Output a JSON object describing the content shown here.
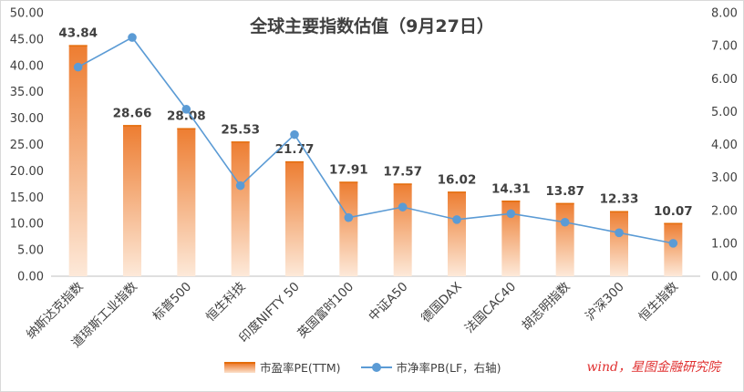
{
  "chart_data": {
    "type": "bar",
    "title": "全球主要指数估值（9月27日）",
    "categories": [
      "纳斯达克指数",
      "道琼斯工业指数",
      "标普500",
      "恒生科技",
      "印度NIFTY 50",
      "英国富时100",
      "中证A50",
      "德国DAX",
      "法国CAC40",
      "胡志明指数",
      "沪深300",
      "恒生指数"
    ],
    "series": [
      {
        "name": "市盈率PE(TTM)",
        "type": "bar",
        "axis": "left",
        "values": [
          43.84,
          28.66,
          28.08,
          25.53,
          21.77,
          17.91,
          17.57,
          16.02,
          14.31,
          13.87,
          12.33,
          10.07
        ]
      },
      {
        "name": "市净率PB(LF，右轴)",
        "type": "line",
        "axis": "right",
        "values": [
          6.35,
          7.25,
          5.07,
          2.75,
          4.3,
          1.78,
          2.1,
          1.72,
          1.9,
          1.64,
          1.32,
          1.0
        ]
      }
    ],
    "left_axis": {
      "min": 0,
      "max": 50,
      "step": 5,
      "ticks": [
        "0.00",
        "5.00",
        "10.00",
        "15.00",
        "20.00",
        "25.00",
        "30.00",
        "35.00",
        "40.00",
        "45.00",
        "50.00"
      ]
    },
    "right_axis": {
      "min": 0,
      "max": 8,
      "step": 1,
      "ticks": [
        "0.00",
        "1.00",
        "2.00",
        "3.00",
        "4.00",
        "5.00",
        "6.00",
        "7.00",
        "8.00"
      ]
    },
    "data_labels": [
      "43.84",
      "28.66",
      "28.08",
      "25.53",
      "21.77",
      "17.91",
      "17.57",
      "16.02",
      "14.31",
      "13.87",
      "12.33",
      "10.07"
    ],
    "legend_position": "bottom",
    "grid": false,
    "colors": {
      "bar_top": "#ed7d31",
      "bar_bottom": "#fde9d9",
      "line": "#5b9bd5",
      "text": "#404040",
      "axis": "#bfbfbf",
      "source": "#e03030"
    }
  },
  "source_text": "wind，星图金融研究院"
}
